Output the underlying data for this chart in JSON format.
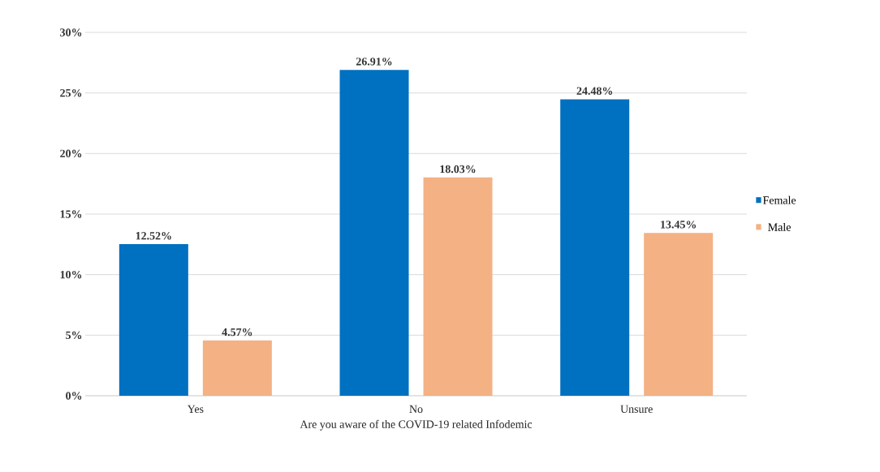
{
  "chart_data": {
    "type": "bar",
    "xlabel": "Are you aware of the COVID-19 related Infodemic",
    "categories": [
      "Yes",
      "No",
      "Unsure"
    ],
    "series": [
      {
        "name": "Female",
        "color": "#0070c0",
        "values": [
          12.52,
          26.91,
          24.48
        ],
        "value_labels": [
          "12.52%",
          "26.91%",
          "24.48%"
        ]
      },
      {
        "name": "Male",
        "color": "#f4b183",
        "values": [
          4.57,
          18.03,
          13.45
        ],
        "value_labels": [
          "4.57%",
          "18.03%",
          "13.45%"
        ]
      }
    ],
    "ylim": [
      0,
      30
    ],
    "yticks": [
      {
        "value": 0,
        "label": "0%"
      },
      {
        "value": 5,
        "label": "5%"
      },
      {
        "value": 10,
        "label": "10%"
      },
      {
        "value": 15,
        "label": "15%"
      },
      {
        "value": 20,
        "label": "20%"
      },
      {
        "value": 25,
        "label": "25%"
      },
      {
        "value": 30,
        "label": "30%"
      }
    ],
    "grid": "y",
    "legend": "right"
  }
}
